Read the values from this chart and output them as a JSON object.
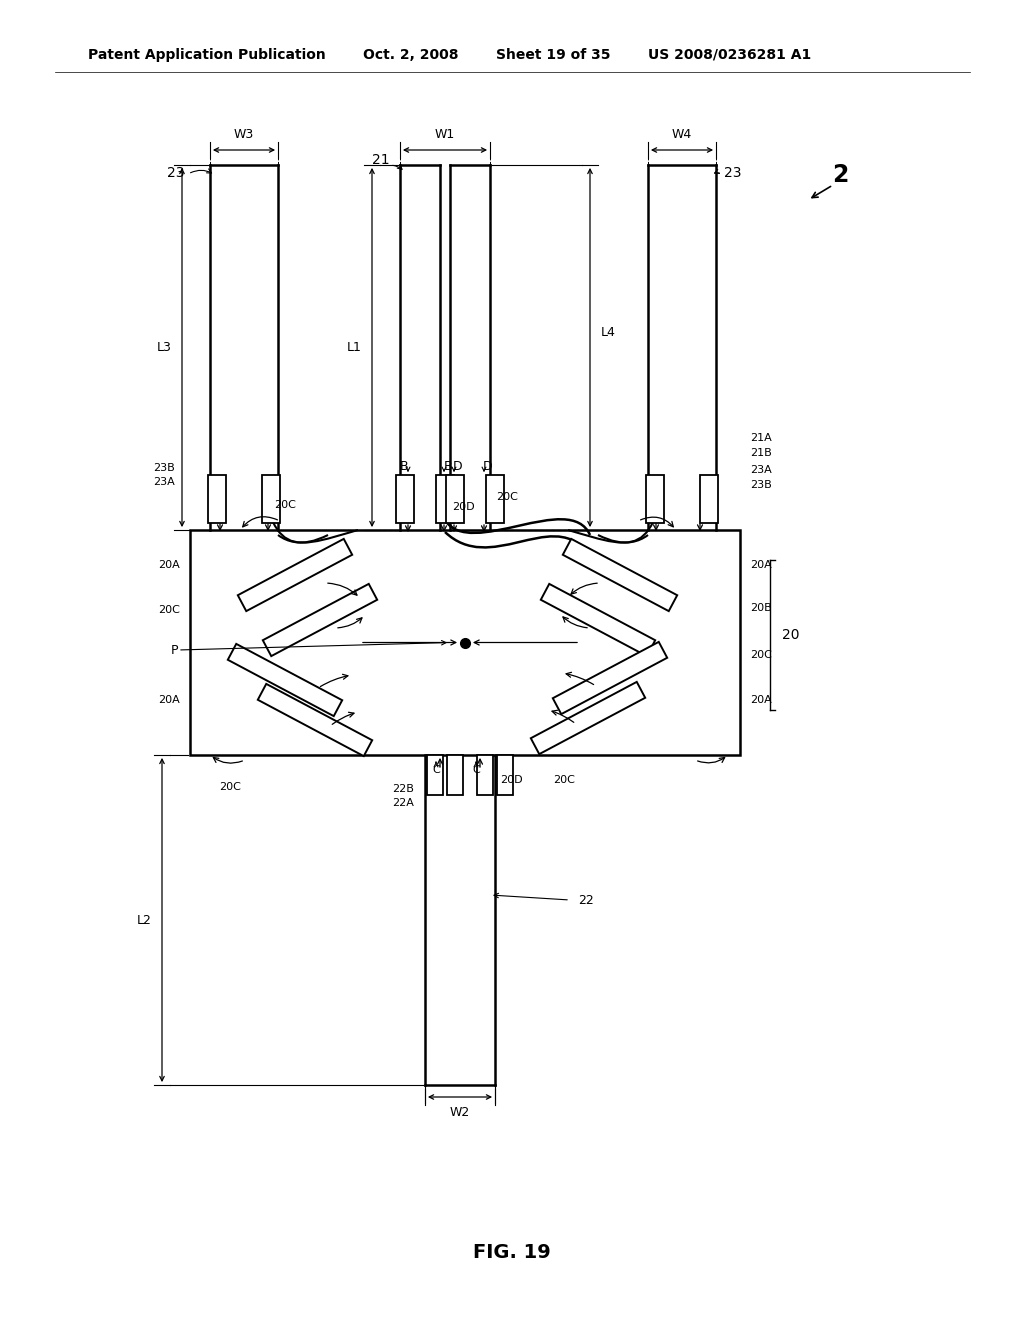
{
  "bg_color": "#ffffff",
  "header_left": "Patent Application Publication",
  "header_mid1": "Oct. 2, 2008",
  "header_mid2": "Sheet 19 of 35",
  "header_right": "US 2008/0236281 A1",
  "fig_label": "FIG. 19",
  "fig_num": "2",
  "header_fontsize": 10,
  "label_fontsize": 10,
  "small_fontsize": 9
}
